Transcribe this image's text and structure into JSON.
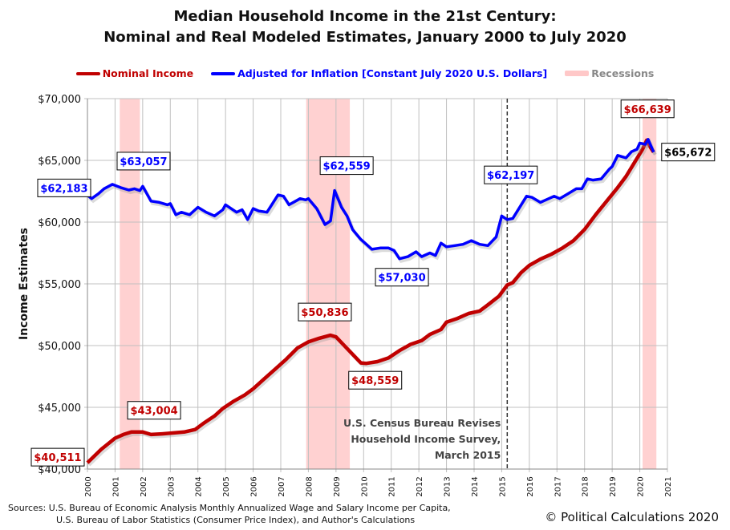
{
  "chart_data": {
    "type": "line",
    "title": "Median Household Income in the 21st Century:",
    "subtitle": "Nominal and Real Modeled Estimates, January 2000 to July 2020",
    "ylabel": "Income Estimates",
    "xlabel": "",
    "xlim": [
      2000,
      2021
    ],
    "ylim": [
      40000,
      70000
    ],
    "grid": true,
    "legend_placement": "top",
    "x_ticks": [
      "2000",
      "2001",
      "2002",
      "2003",
      "2004",
      "2005",
      "2006",
      "2007",
      "2008",
      "2009",
      "2010",
      "2011",
      "2012",
      "2013",
      "2014",
      "2015",
      "2016",
      "2017",
      "2018",
      "2019",
      "2020",
      "2021"
    ],
    "y_ticks": [
      "$40,000",
      "$45,000",
      "$50,000",
      "$55,000",
      "$60,000",
      "$65,000",
      "$70,000"
    ],
    "series": [
      {
        "name": "Nominal Income",
        "color": "#c00000",
        "x": [
          2000.0,
          2000.5,
          2001.0,
          2001.3,
          2001.6,
          2002.0,
          2002.3,
          2002.7,
          2003.0,
          2003.5,
          2003.9,
          2004.2,
          2004.6,
          2004.9,
          2005.3,
          2005.7,
          2006.0,
          2006.4,
          2006.8,
          2007.2,
          2007.6,
          2008.0,
          2008.4,
          2008.8,
          2009.0,
          2009.3,
          2009.6,
          2009.9,
          2010.1,
          2010.5,
          2010.9,
          2011.3,
          2011.7,
          2012.1,
          2012.4,
          2012.8,
          2013.0,
          2013.4,
          2013.8,
          2014.2,
          2014.5,
          2014.9,
          2015.2,
          2015.4,
          2015.7,
          2016.0,
          2016.4,
          2016.8,
          2017.2,
          2017.6,
          2018.0,
          2018.4,
          2018.8,
          2019.2,
          2019.5,
          2019.8,
          2020.1,
          2020.25,
          2020.4,
          2020.5
        ],
        "y": [
          40511,
          41600,
          42500,
          42800,
          43004,
          43000,
          42800,
          42850,
          42900,
          43000,
          43200,
          43700,
          44300,
          44900,
          45500,
          46000,
          46500,
          47300,
          48100,
          48900,
          49800,
          50300,
          50600,
          50836,
          50700,
          50000,
          49300,
          48600,
          48559,
          48700,
          49000,
          49600,
          50100,
          50400,
          50900,
          51300,
          51900,
          52200,
          52600,
          52800,
          53300,
          54000,
          54900,
          55100,
          55900,
          56500,
          57000,
          57400,
          57900,
          58500,
          59400,
          60600,
          61700,
          62800,
          63700,
          64800,
          65900,
          66639,
          66000,
          65672
        ]
      },
      {
        "name": "Adjusted for Inflation [Constant July 2020 U.S. Dollars]",
        "color": "#0000ff",
        "x": [
          2000.0,
          2000.15,
          2000.4,
          2000.6,
          2000.9,
          2001.2,
          2001.5,
          2001.7,
          2001.9,
          2002.0,
          2002.3,
          2002.6,
          2002.9,
          2003.0,
          2003.2,
          2003.4,
          2003.7,
          2004.0,
          2004.3,
          2004.6,
          2004.9,
          2005.0,
          2005.4,
          2005.6,
          2005.8,
          2006.0,
          2006.2,
          2006.5,
          2006.9,
          2007.1,
          2007.3,
          2007.7,
          2007.9,
          2008.0,
          2008.3,
          2008.6,
          2008.8,
          2008.95,
          2009.2,
          2009.4,
          2009.6,
          2009.9,
          2010.1,
          2010.3,
          2010.6,
          2010.9,
          2011.1,
          2011.3,
          2011.6,
          2011.9,
          2012.1,
          2012.4,
          2012.6,
          2012.8,
          2013.0,
          2013.3,
          2013.6,
          2013.9,
          2014.2,
          2014.5,
          2014.8,
          2015.0,
          2015.2,
          2015.4,
          2015.9,
          2016.1,
          2016.4,
          2016.6,
          2016.9,
          2017.1,
          2017.4,
          2017.7,
          2017.9,
          2018.1,
          2018.3,
          2018.6,
          2018.9,
          2019.0,
          2019.2,
          2019.5,
          2019.7,
          2019.9,
          2020.0,
          2020.2,
          2020.3,
          2020.5
        ],
        "y": [
          62183,
          61900,
          62300,
          62700,
          63057,
          62800,
          62600,
          62700,
          62550,
          62900,
          61700,
          61600,
          61400,
          61500,
          60600,
          60800,
          60600,
          61200,
          60800,
          60500,
          61000,
          61400,
          60800,
          61000,
          60200,
          61100,
          60900,
          60800,
          62200,
          62100,
          61400,
          61900,
          61800,
          61900,
          61100,
          59800,
          60100,
          62559,
          61200,
          60500,
          59400,
          58600,
          58200,
          57800,
          57900,
          57900,
          57700,
          57030,
          57200,
          57600,
          57200,
          57500,
          57300,
          58300,
          58000,
          58100,
          58200,
          58500,
          58200,
          58100,
          58800,
          60500,
          60200,
          60300,
          62100,
          62000,
          61600,
          61800,
          62100,
          61900,
          62300,
          62700,
          62700,
          63500,
          63400,
          63500,
          64300,
          64500,
          65400,
          65200,
          65700,
          65900,
          66400,
          66300,
          66700,
          65672
        ]
      }
    ],
    "recessions": {
      "name": "Recessions",
      "color": "#ffb3b3",
      "periods": [
        [
          2001.17,
          2001.9
        ],
        [
          2007.92,
          2009.5
        ],
        [
          2020.1,
          2020.6
        ]
      ]
    },
    "event_line": {
      "x": 2015.2,
      "text": [
        "U.S. Census Bureau Revises",
        "Household Income Survey,",
        "March 2015"
      ]
    },
    "annotations": [
      {
        "text": "$62,183",
        "color": "#0000ff",
        "x": 2000.0,
        "y": 62183
      },
      {
        "text": "$63,057",
        "color": "#0000ff",
        "x": 2000.9,
        "y": 63057
      },
      {
        "text": "$62,559",
        "color": "#0000ff",
        "x": 2008.95,
        "y": 62559
      },
      {
        "text": "$57,030",
        "color": "#0000ff",
        "x": 2011.3,
        "y": 57030
      },
      {
        "text": "$62,197",
        "color": "#0000ff",
        "x": 2015.3,
        "y": 62197
      },
      {
        "text": "$66,639",
        "color": "#c00000",
        "x": 2020.25,
        "y": 66639
      },
      {
        "text": "$65,672",
        "color": "#000000",
        "x": 2020.5,
        "y": 65672
      },
      {
        "text": "$40,511",
        "color": "#c00000",
        "x": 2000.0,
        "y": 40511
      },
      {
        "text": "$43,004",
        "color": "#c00000",
        "x": 2001.6,
        "y": 43004
      },
      {
        "text": "$50,836",
        "color": "#c00000",
        "x": 2008.8,
        "y": 50836
      },
      {
        "text": "$48,559",
        "color": "#c00000",
        "x": 2010.1,
        "y": 48559
      }
    ]
  },
  "footer": {
    "sources_1": "Sources: U.S. Bureau of Economic Analysis Monthly Annualized Wage and Salary Income per Capita,",
    "sources_2": "U.S. Bureau of Labor Statistics (Consumer  Price Index), and Author's Calculations",
    "copyright": "© Political Calculations 2020"
  }
}
